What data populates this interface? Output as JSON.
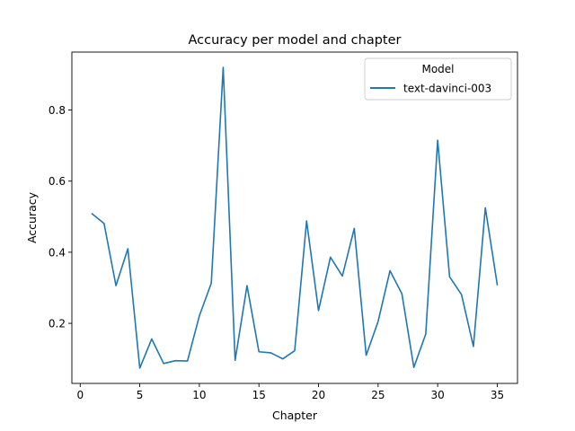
{
  "chart_data": {
    "type": "line",
    "title": "Accuracy per model and chapter",
    "xlabel": "Chapter",
    "ylabel": "Accuracy",
    "xlim": [
      -0.7,
      36.7
    ],
    "ylim": [
      0.031,
      0.963
    ],
    "xticks": [
      0,
      5,
      10,
      15,
      20,
      25,
      30,
      35
    ],
    "yticks": [
      0.2,
      0.4,
      0.6,
      0.8
    ],
    "ytick_labels": [
      "0.2",
      "0.4",
      "0.6",
      "0.8"
    ],
    "grid": false,
    "legend": {
      "title": "Model",
      "placement": "top-right"
    },
    "x": [
      1,
      2,
      3,
      4,
      5,
      6,
      7,
      8,
      9,
      10,
      11,
      12,
      13,
      14,
      15,
      16,
      17,
      18,
      19,
      20,
      21,
      22,
      23,
      24,
      25,
      26,
      27,
      28,
      29,
      30,
      31,
      32,
      33,
      34,
      35
    ],
    "series": [
      {
        "name": "text-davinci-003",
        "color": "#1f77b4",
        "values": [
          0.508,
          0.481,
          0.306,
          0.41,
          0.074,
          0.156,
          0.087,
          0.095,
          0.094,
          0.221,
          0.313,
          0.92,
          0.096,
          0.306,
          0.12,
          0.117,
          0.1,
          0.123,
          0.488,
          0.236,
          0.386,
          0.333,
          0.467,
          0.11,
          0.205,
          0.348,
          0.283,
          0.076,
          0.17,
          0.715,
          0.331,
          0.281,
          0.135,
          0.525,
          0.309
        ]
      }
    ]
  }
}
